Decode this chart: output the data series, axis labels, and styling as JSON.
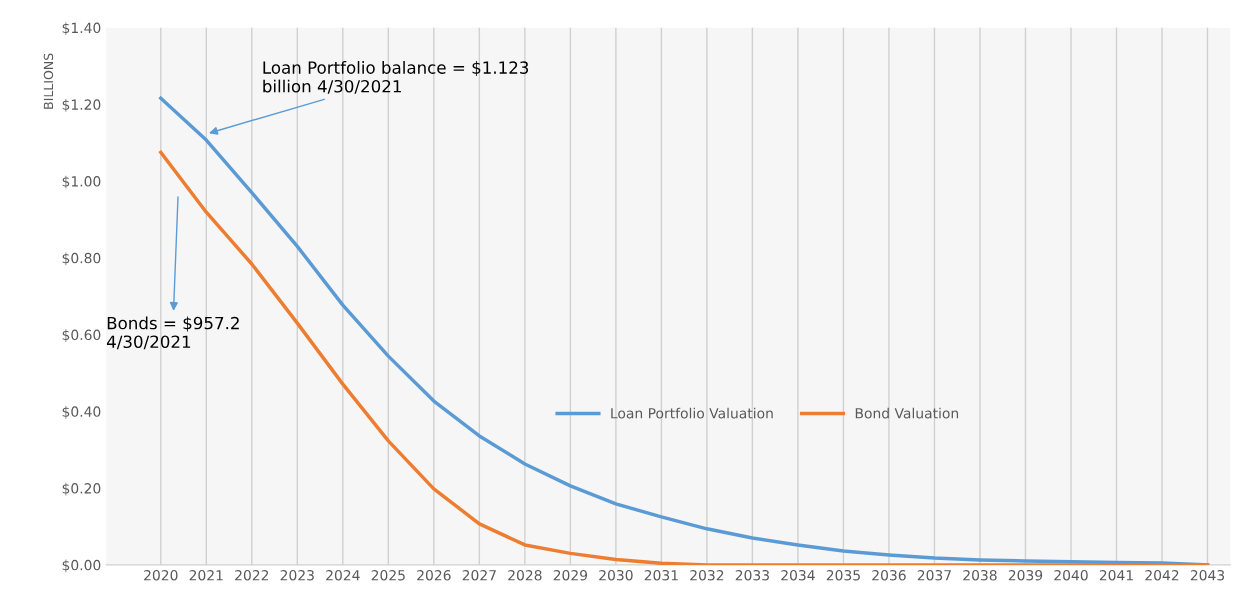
{
  "chart_data": {
    "type": "line",
    "categories": [
      "2020",
      "2021",
      "2022",
      "2023",
      "2024",
      "2025",
      "2026",
      "2027",
      "2028",
      "2029",
      "2030",
      "2031",
      "2032",
      "2033",
      "2034",
      "2035",
      "2036",
      "2037",
      "2038",
      "2039",
      "2040",
      "2041",
      "2042",
      "2043"
    ],
    "series": [
      {
        "name": "Loan Portfolio Valuation",
        "color": "#5b9bd5",
        "values": [
          1.216,
          1.107,
          0.97,
          0.83,
          0.677,
          0.544,
          0.427,
          0.336,
          0.263,
          0.206,
          0.159,
          0.125,
          0.094,
          0.07,
          0.052,
          0.036,
          0.026,
          0.018,
          0.013,
          0.01,
          0.008,
          0.006,
          0.005,
          0.0
        ]
      },
      {
        "name": "Bond Valuation",
        "color": "#ed7d31",
        "values": [
          1.075,
          0.919,
          0.784,
          0.63,
          0.471,
          0.323,
          0.198,
          0.107,
          0.052,
          0.03,
          0.014,
          0.004,
          0.0,
          0.0,
          0.0,
          0.0,
          0.0,
          0.0,
          0.0,
          0.0,
          0.0,
          0.0,
          0.0,
          0.0
        ]
      }
    ],
    "ylabel": "BILLIONS",
    "ylim": [
      0,
      1.4
    ],
    "yticks": [
      {
        "value": 0,
        "label": "$0.00"
      },
      {
        "value": 0.2,
        "label": "$0.20"
      },
      {
        "value": 0.4,
        "label": "$0.40"
      },
      {
        "value": 0.6,
        "label": "$0.60"
      },
      {
        "value": 0.8,
        "label": "$0.80"
      },
      {
        "value": 1.0,
        "label": "$1.00"
      },
      {
        "value": 1.2,
        "label": "$1.20"
      },
      {
        "value": 1.4,
        "label": "$1.40"
      }
    ],
    "grid": "x",
    "legend": "center right",
    "marker": "none",
    "line_style": "solid",
    "annotations": [
      {
        "text": "Loan Portfolio balance = $1.123\nbillion 4/30/2021",
        "x": "2021",
        "y": 1.123
      },
      "Bonds = $957.2\n4/30/2021"
    ]
  }
}
